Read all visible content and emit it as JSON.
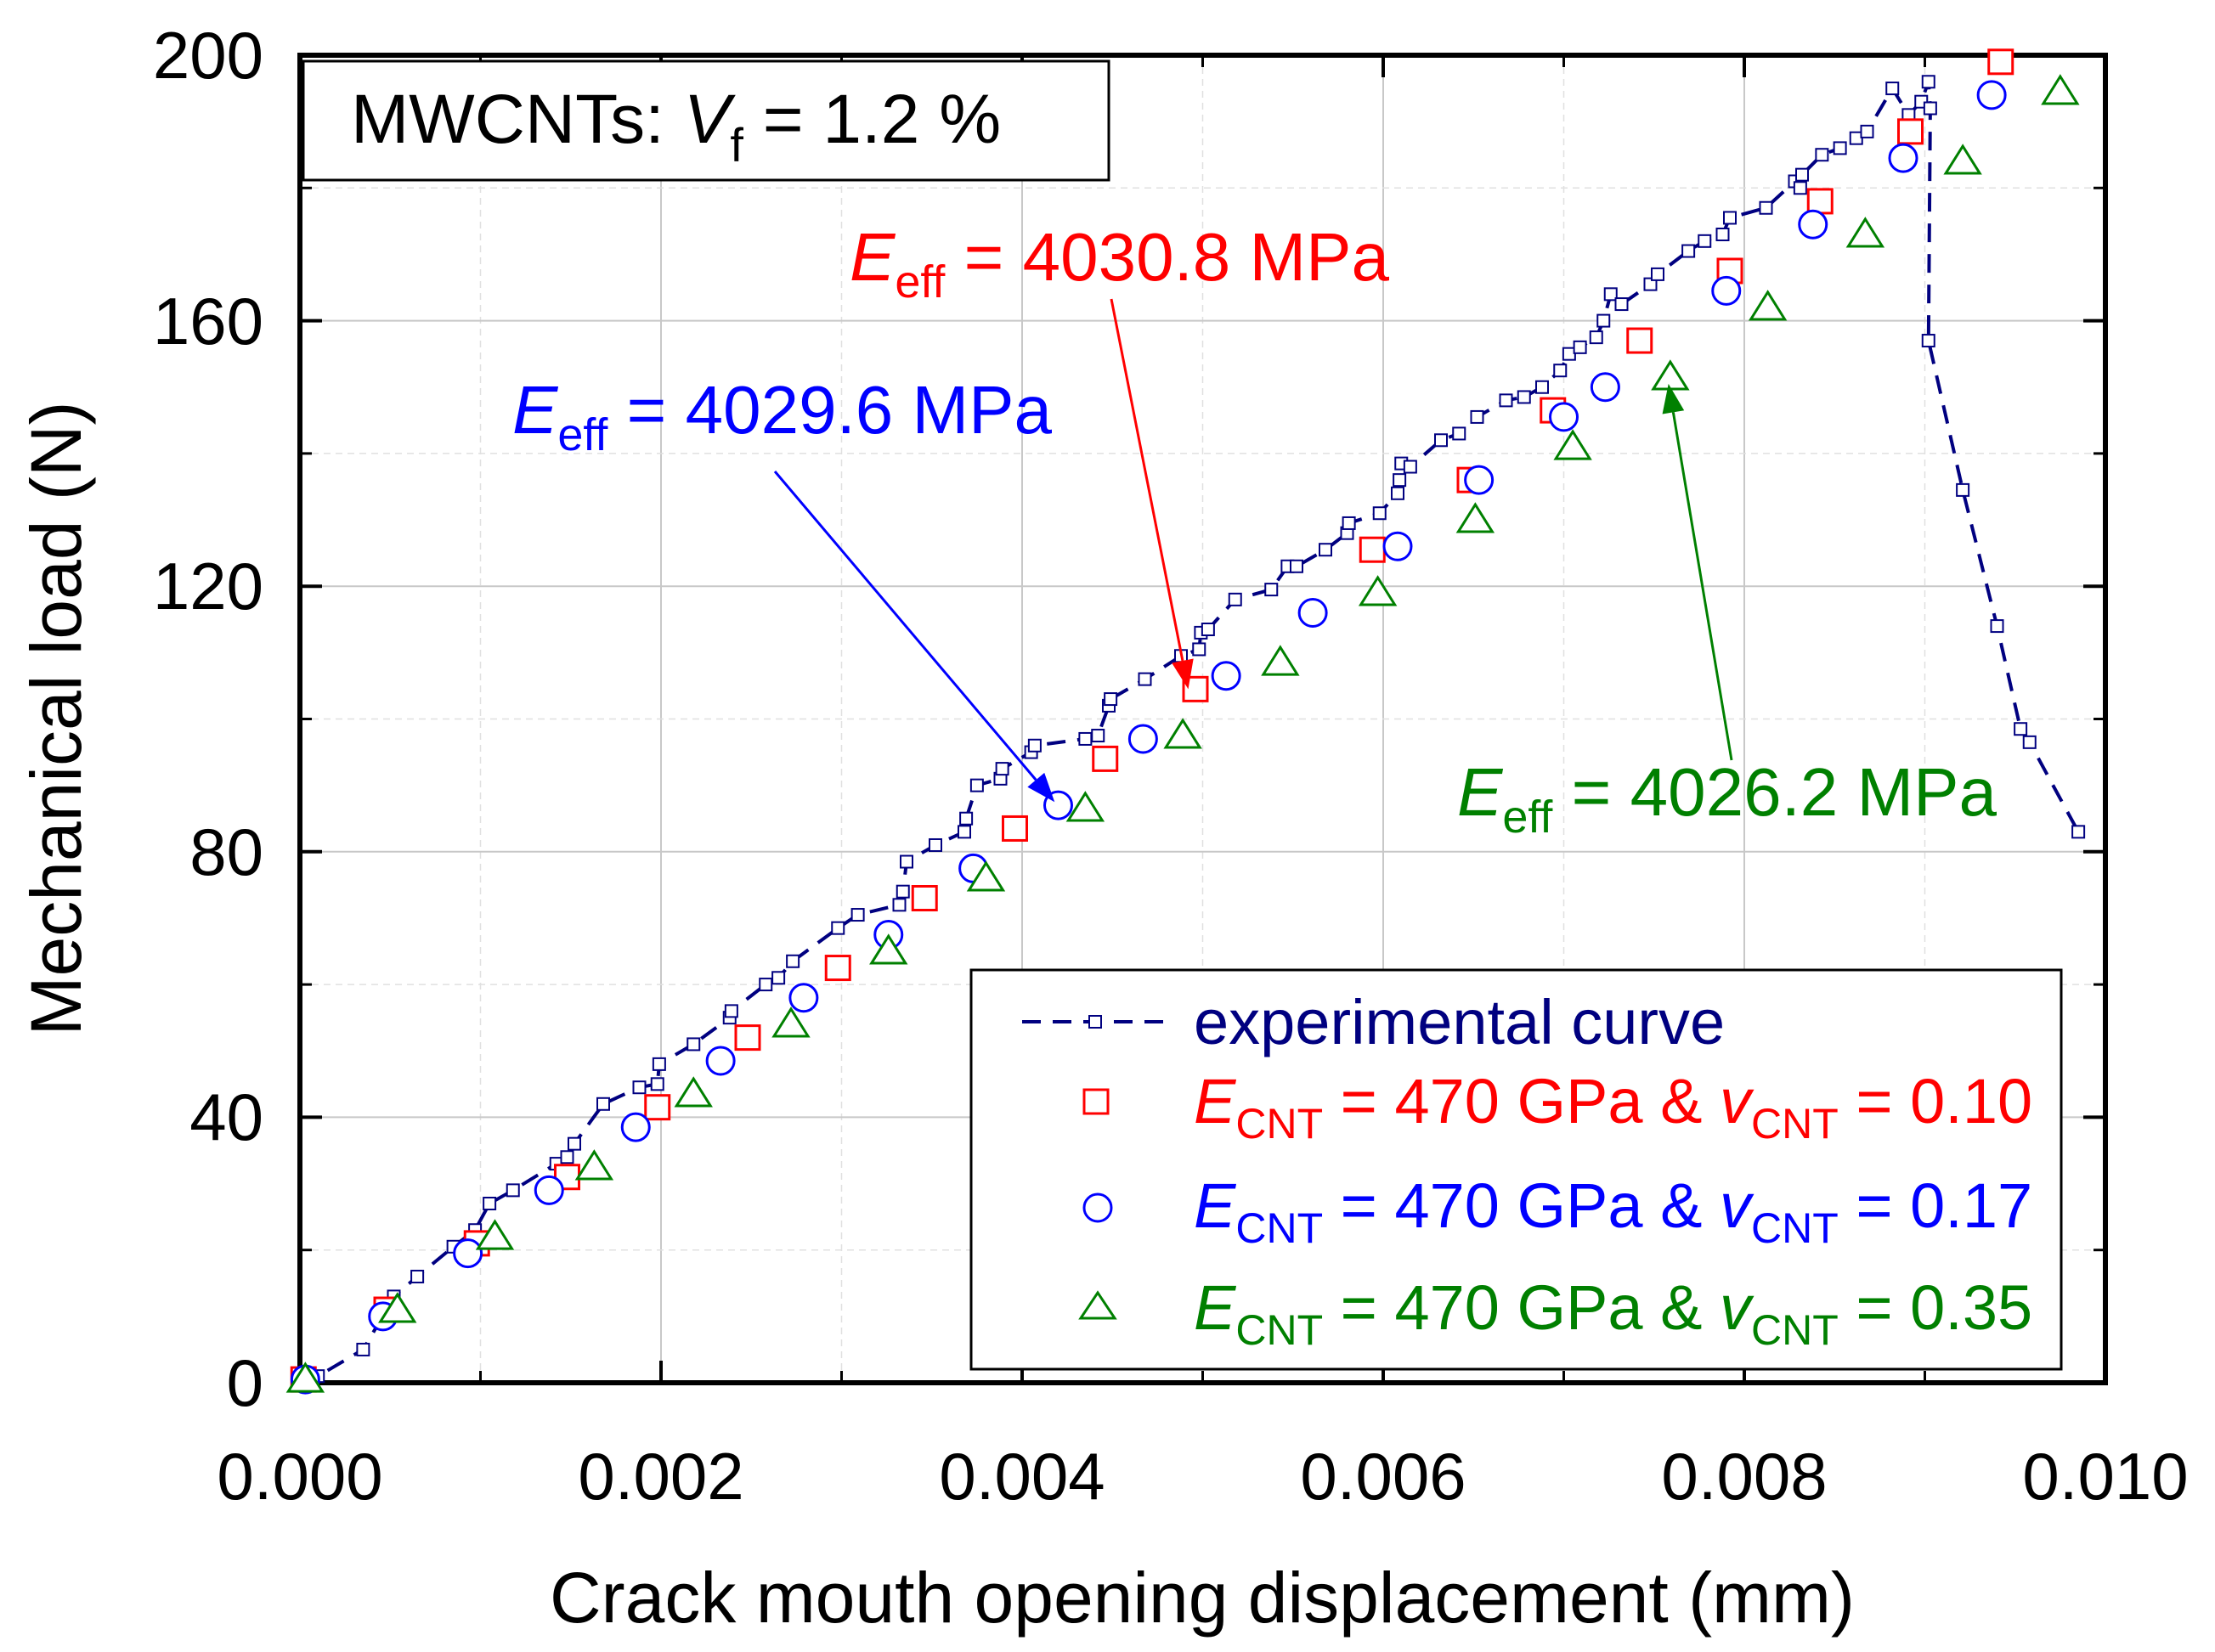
{
  "chart_data": {
    "type": "scatter",
    "title": "",
    "xlabel": "Crack mouth opening displacement (mm)",
    "ylabel": "Mechanical load (N)",
    "xlim": [
      0.0,
      0.01
    ],
    "ylim": [
      0,
      200
    ],
    "x_ticks": [
      "0.000",
      "0.002",
      "0.004",
      "0.006",
      "0.008",
      "0.010"
    ],
    "y_ticks": [
      "0",
      "40",
      "80",
      "120",
      "160",
      "200"
    ],
    "grid": true,
    "info_box": {
      "prefix": "MWCNTs: ",
      "var": "V",
      "sub": "f",
      "suffix": " = 1.2 %"
    },
    "series": [
      {
        "name": "experimental curve",
        "color": "#000080",
        "marker": "small-square",
        "style": "dashed",
        "points": [
          [
            0.0,
            0
          ],
          [
            3e-05,
            0.5
          ],
          [
            0.0001,
            1
          ],
          [
            0.00035,
            5
          ],
          [
            0.00048,
            11
          ],
          [
            0.00052,
            13
          ],
          [
            0.00065,
            16
          ],
          [
            0.00085,
            20.5
          ],
          [
            0.00097,
            23
          ],
          [
            0.00105,
            27
          ],
          [
            0.00118,
            29
          ],
          [
            0.00142,
            33
          ],
          [
            0.00148,
            34
          ],
          [
            0.00152,
            36
          ],
          [
            0.00168,
            42
          ],
          [
            0.00188,
            44.5
          ],
          [
            0.00198,
            45
          ],
          [
            0.00199,
            48
          ],
          [
            0.00218,
            51
          ],
          [
            0.00238,
            55
          ],
          [
            0.00239,
            56
          ],
          [
            0.00258,
            60
          ],
          [
            0.00265,
            61
          ],
          [
            0.00273,
            63.5
          ],
          [
            0.00298,
            68.5
          ],
          [
            0.00309,
            70.5
          ],
          [
            0.00332,
            72
          ],
          [
            0.00334,
            74
          ],
          [
            0.00336,
            78.5
          ],
          [
            0.00352,
            81
          ],
          [
            0.00368,
            83
          ],
          [
            0.00369,
            85
          ],
          [
            0.00375,
            90
          ],
          [
            0.00388,
            91
          ],
          [
            0.00389,
            92.5
          ],
          [
            0.00405,
            95
          ],
          [
            0.00407,
            96
          ],
          [
            0.00435,
            97
          ],
          [
            0.00442,
            97.5
          ],
          [
            0.00448,
            102
          ],
          [
            0.00449,
            103
          ],
          [
            0.00468,
            106
          ],
          [
            0.00488,
            109.5
          ],
          [
            0.00498,
            110.5
          ],
          [
            0.00499,
            113
          ],
          [
            0.00503,
            113.5
          ],
          [
            0.00518,
            118
          ],
          [
            0.00538,
            119.5
          ],
          [
            0.00547,
            123
          ],
          [
            0.00552,
            123
          ],
          [
            0.00568,
            125.5
          ],
          [
            0.0058,
            128
          ],
          [
            0.00581,
            129.5
          ],
          [
            0.00598,
            131
          ],
          [
            0.00608,
            134
          ],
          [
            0.00609,
            136
          ],
          [
            0.0061,
            138.5
          ],
          [
            0.00615,
            138
          ],
          [
            0.00632,
            142
          ],
          [
            0.00642,
            143
          ],
          [
            0.00652,
            145.5
          ],
          [
            0.00668,
            148
          ],
          [
            0.00678,
            148.5
          ],
          [
            0.00688,
            150
          ],
          [
            0.00698,
            152.5
          ],
          [
            0.00703,
            155
          ],
          [
            0.00709,
            156
          ],
          [
            0.00718,
            157.5
          ],
          [
            0.00722,
            160
          ],
          [
            0.00726,
            164
          ],
          [
            0.00732,
            162.5
          ],
          [
            0.00748,
            165.5
          ],
          [
            0.00752,
            167
          ],
          [
            0.00769,
            170.5
          ],
          [
            0.00778,
            172
          ],
          [
            0.00788,
            173
          ],
          [
            0.00792,
            175.5
          ],
          [
            0.00812,
            177
          ],
          [
            0.00828,
            181
          ],
          [
            0.00831,
            180
          ],
          [
            0.00832,
            182
          ],
          [
            0.00843,
            185
          ],
          [
            0.00853,
            186
          ],
          [
            0.00862,
            187.5
          ],
          [
            0.00868,
            188.5
          ],
          [
            0.00882,
            195
          ],
          [
            0.00891,
            191
          ],
          [
            0.00898,
            193
          ],
          [
            0.00902,
            196
          ],
          [
            0.00903,
            192
          ],
          [
            0.00902,
            157
          ],
          [
            0.00921,
            134.5
          ],
          [
            0.0094,
            114
          ],
          [
            0.00953,
            98.5
          ],
          [
            0.00958,
            96.5
          ],
          [
            0.00985,
            83
          ]
        ]
      },
      {
        "name": "E_CNT = 470 GPa & v_CNT = 0.10",
        "color": "#ff0000",
        "marker": "square",
        "points": [
          [
            2e-05,
            0.5
          ],
          [
            0.00048,
            11
          ],
          [
            0.00098,
            21
          ],
          [
            0.00148,
            31
          ],
          [
            0.00198,
            41.5
          ],
          [
            0.00248,
            52
          ],
          [
            0.00298,
            62.5
          ],
          [
            0.00346,
            73
          ],
          [
            0.00396,
            83.5
          ],
          [
            0.00446,
            94
          ],
          [
            0.00496,
            104.5
          ],
          [
            0.00594,
            125.5
          ],
          [
            0.00648,
            136
          ],
          [
            0.00694,
            146.5
          ],
          [
            0.00742,
            157
          ],
          [
            0.00792,
            167.5
          ],
          [
            0.00842,
            178
          ],
          [
            0.00892,
            188.5
          ],
          [
            0.00942,
            199
          ]
        ]
      },
      {
        "name": "E_CNT = 470 GPa & v_CNT = 0.17",
        "color": "#0000ff",
        "marker": "circle",
        "points": [
          [
            3e-05,
            0.5
          ],
          [
            0.00046,
            10
          ],
          [
            0.00093,
            19.5
          ],
          [
            0.00138,
            29
          ],
          [
            0.00186,
            38.5
          ],
          [
            0.00233,
            48.5
          ],
          [
            0.00279,
            58
          ],
          [
            0.00326,
            67.5
          ],
          [
            0.00373,
            77.5
          ],
          [
            0.0042,
            87
          ],
          [
            0.00467,
            97
          ],
          [
            0.00513,
            106.5
          ],
          [
            0.00561,
            116
          ],
          [
            0.00608,
            126
          ],
          [
            0.00653,
            136
          ],
          [
            0.007,
            145.5
          ],
          [
            0.00723,
            150
          ],
          [
            0.0079,
            164.5
          ],
          [
            0.00838,
            174.5
          ],
          [
            0.00888,
            184.5
          ],
          [
            0.00937,
            194
          ]
        ]
      },
      {
        "name": "E_CNT = 470 GPa & v_CNT = 0.35",
        "color": "#008000",
        "marker": "triangle",
        "points": [
          [
            3e-05,
            0.5
          ],
          [
            0.00054,
            11
          ],
          [
            0.00108,
            22
          ],
          [
            0.00163,
            32.5
          ],
          [
            0.00218,
            43.5
          ],
          [
            0.00272,
            54
          ],
          [
            0.00326,
            65
          ],
          [
            0.0038,
            76
          ],
          [
            0.00435,
            86.5
          ],
          [
            0.00489,
            97.5
          ],
          [
            0.00543,
            108.5
          ],
          [
            0.00597,
            119
          ],
          [
            0.00651,
            130
          ],
          [
            0.00705,
            141
          ],
          [
            0.00759,
            151.5
          ],
          [
            0.00813,
            162
          ],
          [
            0.00867,
            173
          ],
          [
            0.00921,
            184
          ],
          [
            0.00975,
            194.5
          ]
        ]
      }
    ],
    "annotations": [
      {
        "var": "E",
        "sub": "eff",
        "text": " = 4030.8 MPa",
        "color": "#ff0000",
        "target": [
          0.00492,
          104.5
        ]
      },
      {
        "var": "E",
        "sub": "eff",
        "text": " = 4029.6 MPa",
        "color": "#0000ff",
        "target": [
          0.00418,
          87.5
        ]
      },
      {
        "var": "E",
        "sub": "eff",
        "text": " = 4026.2 MPa",
        "color": "#008000",
        "target": [
          0.00758,
          150.5
        ]
      }
    ],
    "legend": {
      "position": "bottom-right",
      "entries": [
        {
          "text": "experimental curve",
          "color": "#000080"
        },
        {
          "var1": "E",
          "sub1": "CNT",
          "mid": " = 470 GPa & ",
          "var2": "v",
          "sub2": "CNT",
          "tail": " = 0.10",
          "color": "#ff0000"
        },
        {
          "var1": "E",
          "sub1": "CNT",
          "mid": " = 470 GPa & ",
          "var2": "v",
          "sub2": "CNT",
          "tail": " = 0.17",
          "color": "#0000ff"
        },
        {
          "var1": "E",
          "sub1": "CNT",
          "mid": " = 470 GPa & ",
          "var2": "v",
          "sub2": "CNT",
          "tail": " = 0.35",
          "color": "#008000"
        }
      ]
    }
  }
}
